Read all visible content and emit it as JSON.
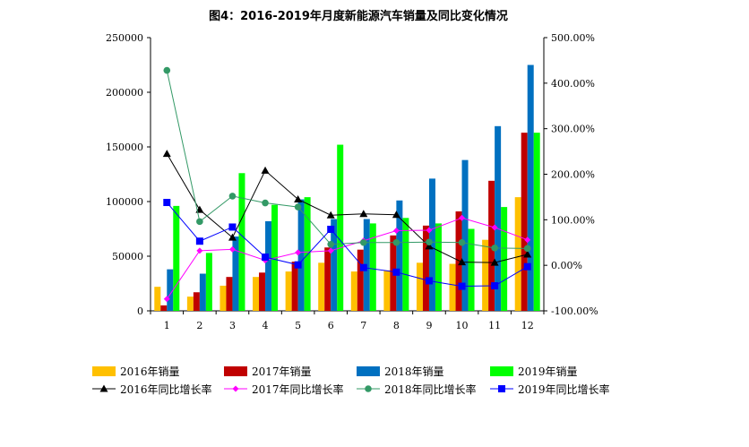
{
  "chart_data": {
    "type": "bar",
    "title": "图4：2016-2019年月度新能源汽车销量及同比变化情况",
    "categories": [
      "1",
      "2",
      "3",
      "4",
      "5",
      "6",
      "7",
      "8",
      "9",
      "10",
      "11",
      "12"
    ],
    "left_axis": {
      "ylim": [
        0,
        250000
      ],
      "ticks": [
        "0",
        "50000",
        "100000",
        "150000",
        "200000",
        "250000"
      ]
    },
    "right_axis": {
      "ylim": [
        -100,
        500
      ],
      "ticks": [
        "-100.00%",
        "0.00%",
        "100.00%",
        "200.00%",
        "300.00%",
        "400.00%",
        "500.00%"
      ]
    },
    "bar_series": [
      {
        "name": "2016年销量",
        "color": "#FFC000",
        "values": [
          22000,
          13000,
          23000,
          31000,
          36000,
          44000,
          36000,
          37000,
          44000,
          43000,
          65000,
          104000
        ]
      },
      {
        "name": "2017年销量",
        "color": "#C00000",
        "values": [
          5000,
          17000,
          31000,
          35000,
          45000,
          58000,
          56000,
          69000,
          78000,
          91000,
          119000,
          163000
        ]
      },
      {
        "name": "2018年销量",
        "color": "#0070C0",
        "values": [
          38000,
          34000,
          68000,
          82000,
          102000,
          84000,
          84000,
          101000,
          121000,
          138000,
          169000,
          225000
        ]
      },
      {
        "name": "2019年销量",
        "color": "#00FF00",
        "values": [
          96000,
          53000,
          126000,
          97000,
          104000,
          152000,
          80000,
          85000,
          80000,
          75000,
          95000,
          163000
        ]
      }
    ],
    "line_series": [
      {
        "name": "2016年同比增长率",
        "color": "#000000",
        "marker": "triangle",
        "values": [
          245,
          122,
          61,
          208,
          145,
          110,
          113,
          111,
          42,
          7,
          6,
          24
        ]
      },
      {
        "name": "2017年同比增长率",
        "color": "#FF00FF",
        "marker": "diamond",
        "values": [
          -74,
          32,
          35,
          11,
          28,
          32,
          54,
          76,
          77,
          104,
          83,
          56
        ]
      },
      {
        "name": "2018年同比增长率",
        "color": "#339966",
        "marker": "circle",
        "values": [
          428,
          96,
          152,
          137,
          128,
          46,
          50,
          50,
          51,
          50,
          38,
          37
        ]
      },
      {
        "name": "2019年同比增长率",
        "color": "#0000FF",
        "marker": "square",
        "values": [
          138,
          53,
          84,
          18,
          1,
          79,
          -5,
          -15,
          -34,
          -46,
          -45,
          -3
        ]
      }
    ]
  }
}
